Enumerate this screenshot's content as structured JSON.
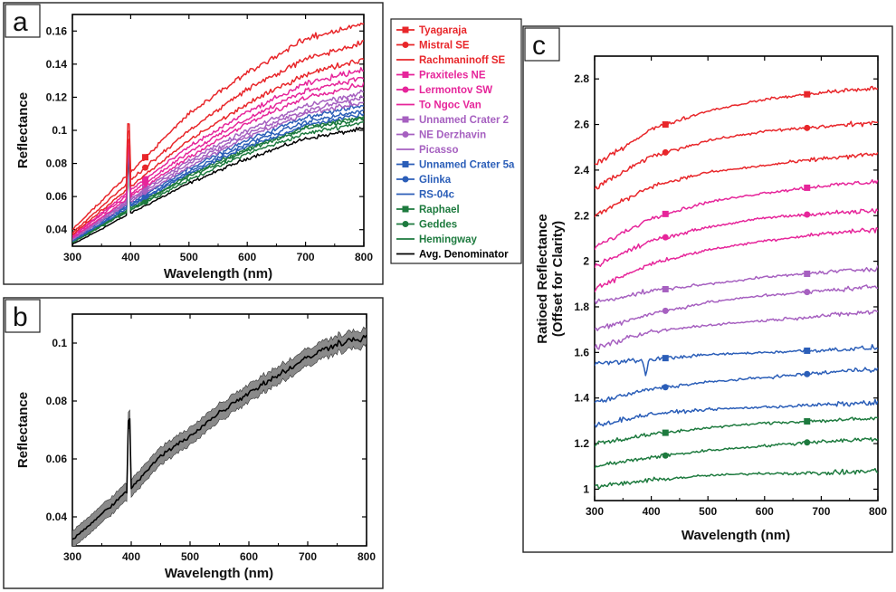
{
  "figure": {
    "panels": [
      {
        "letter": "a",
        "xlabel": "Wavelength (nm)",
        "ylabel": "Reflectance"
      },
      {
        "letter": "b",
        "xlabel": "Wavelength (nm)",
        "ylabel": "Reflectance"
      },
      {
        "letter": "c",
        "xlabel": "Wavelength (nm)",
        "ylabel_line1": "Ratioed Reflectance",
        "ylabel_line2": "(Offset for Clarity)"
      }
    ]
  },
  "legend": {
    "items": [
      {
        "name": "Tyagaraja",
        "color": "#e8262a",
        "marker": "square"
      },
      {
        "name": "Mistral SE",
        "color": "#e8262a",
        "marker": "circle"
      },
      {
        "name": "Rachmaninoff SE",
        "color": "#e8262a",
        "marker": "none"
      },
      {
        "name": "Praxiteles NE",
        "color": "#e6259a",
        "marker": "square"
      },
      {
        "name": "Lermontov SW",
        "color": "#e6259a",
        "marker": "circle"
      },
      {
        "name": "To Ngoc Van",
        "color": "#e6259a",
        "marker": "none"
      },
      {
        "name": "Unnamed Crater 2",
        "color": "#a660c0",
        "marker": "square"
      },
      {
        "name": "NE Derzhavin",
        "color": "#a660c0",
        "marker": "circle"
      },
      {
        "name": "Picasso",
        "color": "#a660c0",
        "marker": "none"
      },
      {
        "name": "Unnamed Crater 5a",
        "color": "#2b5eb8",
        "marker": "square"
      },
      {
        "name": "Glinka",
        "color": "#2b5eb8",
        "marker": "circle"
      },
      {
        "name": "RS-04c",
        "color": "#2b5eb8",
        "marker": "none"
      },
      {
        "name": "Raphael",
        "color": "#1d7a3e",
        "marker": "square"
      },
      {
        "name": "Geddes",
        "color": "#1d7a3e",
        "marker": "circle"
      },
      {
        "name": "Hemingway",
        "color": "#1d7a3e",
        "marker": "none"
      },
      {
        "name": "Avg. Denominator",
        "color": "#000000",
        "marker": "none"
      }
    ]
  },
  "chart_data": [
    {
      "type": "line",
      "panel": "a",
      "xlabel": "Wavelength (nm)",
      "ylabel": "Reflectance",
      "xlim": [
        300,
        800
      ],
      "ylim": [
        0.03,
        0.17
      ],
      "xticks": [
        300,
        400,
        500,
        600,
        700,
        800
      ],
      "yticks": [
        0.04,
        0.06,
        0.08,
        0.1,
        0.12,
        0.14,
        0.16
      ],
      "ytick_labels": [
        "0.04",
        "0.06",
        "0.08",
        "0.1",
        "0.12",
        "0.14",
        "0.16"
      ],
      "spike_wavelength_nm": 397,
      "series": [
        {
          "name": "Tyagaraja",
          "color": "#e8262a",
          "marker": "square",
          "x": [
            300,
            400,
            500,
            600,
            700,
            800
          ],
          "y": [
            0.04,
            0.075,
            0.11,
            0.135,
            0.155,
            0.165
          ]
        },
        {
          "name": "Mistral SE",
          "color": "#e8262a",
          "marker": "circle",
          "x": [
            300,
            400,
            500,
            600,
            700,
            800
          ],
          "y": [
            0.038,
            0.07,
            0.1,
            0.125,
            0.143,
            0.153
          ]
        },
        {
          "name": "Rachmaninoff SE",
          "color": "#e8262a",
          "marker": "none",
          "x": [
            300,
            400,
            500,
            600,
            700,
            800
          ],
          "y": [
            0.037,
            0.066,
            0.094,
            0.116,
            0.134,
            0.143
          ]
        },
        {
          "name": "Praxiteles NE",
          "color": "#e6259a",
          "marker": "square",
          "x": [
            300,
            400,
            500,
            600,
            700,
            800
          ],
          "y": [
            0.036,
            0.064,
            0.09,
            0.111,
            0.128,
            0.137
          ]
        },
        {
          "name": "Lermontov SW",
          "color": "#e6259a",
          "marker": "circle",
          "x": [
            300,
            400,
            500,
            600,
            700,
            800
          ],
          "y": [
            0.036,
            0.062,
            0.087,
            0.107,
            0.124,
            0.132
          ]
        },
        {
          "name": "To Ngoc Van",
          "color": "#e6259a",
          "marker": "none",
          "x": [
            300,
            400,
            500,
            600,
            700,
            800
          ],
          "y": [
            0.035,
            0.06,
            0.084,
            0.104,
            0.12,
            0.128
          ]
        },
        {
          "name": "Unnamed Crater 2",
          "color": "#a660c0",
          "marker": "square",
          "x": [
            300,
            400,
            500,
            600,
            700,
            800
          ],
          "y": [
            0.035,
            0.059,
            0.082,
            0.1,
            0.115,
            0.123
          ]
        },
        {
          "name": "NE Derzhavin",
          "color": "#a660c0",
          "marker": "circle",
          "x": [
            300,
            400,
            500,
            600,
            700,
            800
          ],
          "y": [
            0.034,
            0.058,
            0.08,
            0.098,
            0.112,
            0.12
          ]
        },
        {
          "name": "Picasso",
          "color": "#a660c0",
          "marker": "none",
          "x": [
            300,
            400,
            500,
            600,
            700,
            800
          ],
          "y": [
            0.034,
            0.057,
            0.078,
            0.096,
            0.11,
            0.117
          ]
        },
        {
          "name": "Unnamed Crater 5a",
          "color": "#2b5eb8",
          "marker": "square",
          "x": [
            300,
            400,
            500,
            600,
            700,
            800
          ],
          "y": [
            0.034,
            0.056,
            0.077,
            0.094,
            0.108,
            0.115
          ]
        },
        {
          "name": "Glinka",
          "color": "#2b5eb8",
          "marker": "circle",
          "x": [
            300,
            400,
            500,
            600,
            700,
            800
          ],
          "y": [
            0.033,
            0.055,
            0.075,
            0.092,
            0.105,
            0.112
          ]
        },
        {
          "name": "RS-04c",
          "color": "#2b5eb8",
          "marker": "none",
          "x": [
            300,
            400,
            500,
            600,
            700,
            800
          ],
          "y": [
            0.033,
            0.054,
            0.074,
            0.09,
            0.103,
            0.11
          ]
        },
        {
          "name": "Raphael",
          "color": "#1d7a3e",
          "marker": "square",
          "x": [
            300,
            400,
            500,
            600,
            700,
            800
          ],
          "y": [
            0.033,
            0.053,
            0.073,
            0.089,
            0.102,
            0.108
          ]
        },
        {
          "name": "Geddes",
          "color": "#1d7a3e",
          "marker": "circle",
          "x": [
            300,
            400,
            500,
            600,
            700,
            800
          ],
          "y": [
            0.033,
            0.052,
            0.072,
            0.088,
            0.101,
            0.107
          ]
        },
        {
          "name": "Hemingway",
          "color": "#1d7a3e",
          "marker": "none",
          "x": [
            300,
            400,
            500,
            600,
            700,
            800
          ],
          "y": [
            0.032,
            0.052,
            0.07,
            0.086,
            0.098,
            0.105
          ]
        },
        {
          "name": "Avg. Denominator",
          "color": "#000000",
          "marker": "none",
          "x": [
            300,
            400,
            500,
            600,
            700,
            800
          ],
          "y": [
            0.031,
            0.05,
            0.068,
            0.083,
            0.095,
            0.101
          ]
        }
      ]
    },
    {
      "type": "line",
      "panel": "b",
      "xlabel": "Wavelength (nm)",
      "ylabel": "Reflectance",
      "xlim": [
        300,
        800
      ],
      "ylim": [
        0.03,
        0.11
      ],
      "xticks": [
        300,
        400,
        500,
        600,
        700,
        800
      ],
      "yticks": [
        0.04,
        0.06,
        0.08,
        0.1
      ],
      "ytick_labels": [
        "0.04",
        "0.06",
        "0.08",
        "0.1"
      ],
      "series": [
        {
          "name": "Avg. Denominator",
          "color": "#000000",
          "x": [
            300,
            350,
            400,
            450,
            500,
            550,
            600,
            650,
            700,
            750,
            800
          ],
          "y": [
            0.032,
            0.041,
            0.05,
            0.061,
            0.068,
            0.076,
            0.083,
            0.089,
            0.095,
            0.1,
            0.102
          ],
          "band_halfwidth": 0.003,
          "band_color": "#8a8a8a"
        }
      ],
      "spike_wavelength_nm": 397
    },
    {
      "type": "line",
      "panel": "c",
      "xlabel": "Wavelength (nm)",
      "ylabel": "Ratioed Reflectance (Offset for Clarity)",
      "xlim": [
        300,
        800
      ],
      "ylim": [
        0.95,
        2.9
      ],
      "xticks": [
        300,
        400,
        500,
        600,
        700,
        800
      ],
      "yticks": [
        1,
        1.2,
        1.4,
        1.6,
        1.8,
        2,
        2.2,
        2.4,
        2.6,
        2.8
      ],
      "ytick_labels": [
        "1",
        "1.2",
        "1.4",
        "1.6",
        "1.8",
        "2",
        "2.2",
        "2.4",
        "2.6",
        "2.8"
      ],
      "marker_wavelengths_nm": [
        425,
        675
      ],
      "series": [
        {
          "name": "Tyagaraja",
          "color": "#e8262a",
          "marker": "square",
          "x": [
            300,
            400,
            500,
            600,
            700,
            800
          ],
          "y": [
            2.42,
            2.58,
            2.66,
            2.71,
            2.74,
            2.76
          ]
        },
        {
          "name": "Mistral SE",
          "color": "#e8262a",
          "marker": "circle",
          "x": [
            300,
            400,
            500,
            600,
            700,
            800
          ],
          "y": [
            2.32,
            2.46,
            2.53,
            2.57,
            2.59,
            2.61
          ]
        },
        {
          "name": "Rachmaninoff SE",
          "color": "#e8262a",
          "marker": "none",
          "x": [
            300,
            400,
            500,
            600,
            700,
            800
          ],
          "y": [
            2.2,
            2.33,
            2.39,
            2.42,
            2.45,
            2.47
          ]
        },
        {
          "name": "Praxiteles NE",
          "color": "#e6259a",
          "marker": "square",
          "x": [
            300,
            400,
            500,
            600,
            700,
            800
          ],
          "y": [
            2.06,
            2.19,
            2.26,
            2.3,
            2.33,
            2.35
          ]
        },
        {
          "name": "Lermontov SW",
          "color": "#e6259a",
          "marker": "circle",
          "x": [
            300,
            400,
            500,
            600,
            700,
            800
          ],
          "y": [
            1.98,
            2.09,
            2.15,
            2.19,
            2.21,
            2.22
          ]
        },
        {
          "name": "To Ngoc Van",
          "color": "#e6259a",
          "marker": "none",
          "x": [
            300,
            400,
            500,
            600,
            700,
            800
          ],
          "y": [
            1.88,
            1.99,
            2.05,
            2.09,
            2.12,
            2.14
          ]
        },
        {
          "name": "Unnamed Crater 2",
          "color": "#a660c0",
          "marker": "square",
          "x": [
            300,
            400,
            500,
            600,
            700,
            800
          ],
          "y": [
            1.82,
            1.87,
            1.9,
            1.93,
            1.95,
            1.97
          ]
        },
        {
          "name": "NE Derzhavin",
          "color": "#a660c0",
          "marker": "circle",
          "x": [
            300,
            400,
            500,
            600,
            700,
            800
          ],
          "y": [
            1.7,
            1.77,
            1.82,
            1.85,
            1.87,
            1.89
          ]
        },
        {
          "name": "Picasso",
          "color": "#a660c0",
          "marker": "none",
          "x": [
            300,
            400,
            500,
            600,
            700,
            800
          ],
          "y": [
            1.62,
            1.69,
            1.72,
            1.74,
            1.76,
            1.78
          ]
        },
        {
          "name": "Unnamed Crater 5a",
          "color": "#2b5eb8",
          "marker": "square",
          "x": [
            300,
            400,
            500,
            600,
            700,
            800
          ],
          "y": [
            1.55,
            1.57,
            1.59,
            1.6,
            1.61,
            1.62
          ]
        },
        {
          "name": "Glinka",
          "color": "#2b5eb8",
          "marker": "circle",
          "x": [
            300,
            400,
            500,
            600,
            700,
            800
          ],
          "y": [
            1.38,
            1.44,
            1.47,
            1.49,
            1.51,
            1.53
          ]
        },
        {
          "name": "RS-04c",
          "color": "#2b5eb8",
          "marker": "none",
          "x": [
            300,
            400,
            500,
            600,
            700,
            800
          ],
          "y": [
            1.28,
            1.33,
            1.35,
            1.36,
            1.37,
            1.38
          ]
        },
        {
          "name": "Raphael",
          "color": "#1d7a3e",
          "marker": "square",
          "x": [
            300,
            400,
            500,
            600,
            700,
            800
          ],
          "y": [
            1.2,
            1.24,
            1.27,
            1.29,
            1.3,
            1.31
          ]
        },
        {
          "name": "Geddes",
          "color": "#1d7a3e",
          "marker": "circle",
          "x": [
            300,
            400,
            500,
            600,
            700,
            800
          ],
          "y": [
            1.1,
            1.14,
            1.17,
            1.19,
            1.21,
            1.22
          ]
        },
        {
          "name": "Hemingway",
          "color": "#1d7a3e",
          "marker": "none",
          "x": [
            300,
            400,
            500,
            600,
            700,
            800
          ],
          "y": [
            1.01,
            1.04,
            1.06,
            1.07,
            1.07,
            1.08
          ]
        }
      ]
    }
  ]
}
